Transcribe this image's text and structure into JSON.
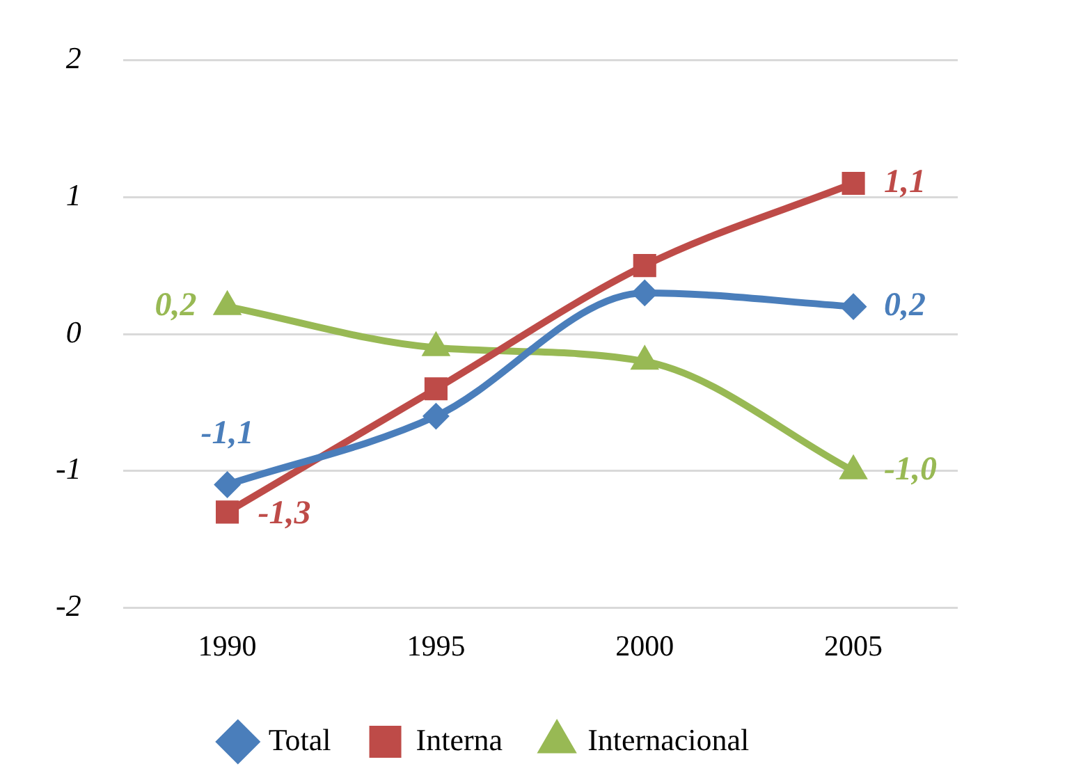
{
  "chart_data": {
    "type": "line",
    "categories": [
      "1990",
      "1995",
      "2000",
      "2005"
    ],
    "series": [
      {
        "name": "Total",
        "color": "#4a7ebb",
        "marker": "diamond",
        "values": [
          -1.1,
          -0.6,
          0.3,
          0.2
        ],
        "value_labels": [
          "-1,1",
          null,
          null,
          "0,2"
        ]
      },
      {
        "name": "Interna",
        "color": "#be4b48",
        "marker": "square",
        "values": [
          -1.3,
          -0.4,
          0.5,
          1.1
        ],
        "value_labels": [
          "-1,3",
          null,
          null,
          "1,1"
        ]
      },
      {
        "name": "Internacional",
        "color": "#98b954",
        "marker": "triangle",
        "values": [
          0.2,
          -0.1,
          -0.2,
          -1.0
        ],
        "value_labels": [
          "0,2",
          null,
          null,
          "-1,0"
        ]
      }
    ],
    "ylim": [
      -2,
      2
    ],
    "yticks": [
      -2,
      -1,
      0,
      1,
      2
    ],
    "grid": "y",
    "legend": "bottom"
  }
}
